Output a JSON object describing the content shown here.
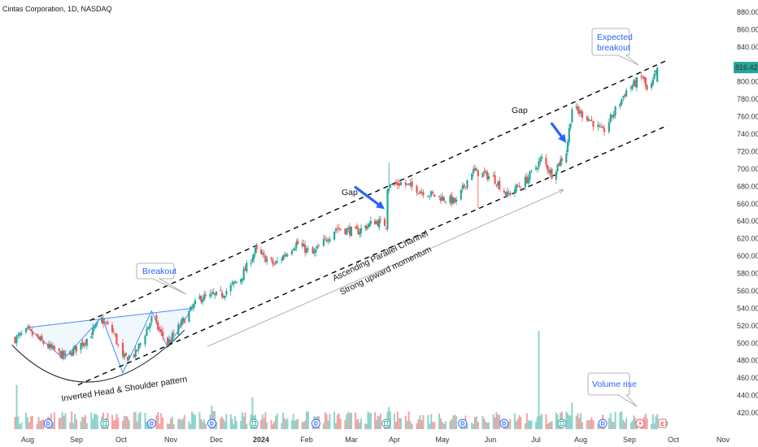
{
  "header": {
    "title": "Cintas Corporation, 1D, NASDAQ"
  },
  "chart_data": {
    "type": "candlestick",
    "symbol": "Cintas Corporation",
    "interval": "1D",
    "exchange": "NASDAQ",
    "ylim": [
      400,
      890
    ],
    "y_ticks": [
      420,
      440,
      460,
      480,
      500,
      520,
      540,
      560,
      580,
      600,
      620,
      640,
      660,
      680,
      700,
      720,
      740,
      760,
      780,
      800,
      820,
      840,
      860,
      880
    ],
    "x_ticks": [
      "Aug",
      "Sep",
      "Oct",
      "Nov",
      "Dec",
      "2024",
      "Feb",
      "Mar",
      "Apr",
      "May",
      "Jun",
      "Jul",
      "Aug",
      "Sep",
      "Oct",
      "Nov"
    ],
    "last_price": "816.42",
    "colors": {
      "up": "#26a69a",
      "down": "#ef5350",
      "up_volume": "#8fd3cb",
      "down_volume": "#f4a3a1",
      "channel": "#000000",
      "pattern": "#4c8bf5",
      "arrow": "#2962ff",
      "price_tag": "#26a69a"
    },
    "price_path": [
      {
        "date": "2023-07-24",
        "price": 505
      },
      {
        "date": "2023-08-01",
        "price": 514
      },
      {
        "date": "2023-08-14",
        "price": 496
      },
      {
        "date": "2023-08-25",
        "price": 484
      },
      {
        "date": "2023-09-08",
        "price": 505
      },
      {
        "date": "2023-09-18",
        "price": 527
      },
      {
        "date": "2023-09-26",
        "price": 512
      },
      {
        "date": "2023-10-02",
        "price": 482
      },
      {
        "date": "2023-10-10",
        "price": 488
      },
      {
        "date": "2023-10-20",
        "price": 528
      },
      {
        "date": "2023-10-30",
        "price": 500
      },
      {
        "date": "2023-11-10",
        "price": 528
      },
      {
        "date": "2023-11-20",
        "price": 552
      },
      {
        "date": "2023-12-05",
        "price": 556
      },
      {
        "date": "2023-12-18",
        "price": 575
      },
      {
        "date": "2023-12-28",
        "price": 606
      },
      {
        "date": "2024-01-10",
        "price": 590
      },
      {
        "date": "2024-01-25",
        "price": 615
      },
      {
        "date": "2024-02-05",
        "price": 602
      },
      {
        "date": "2024-02-20",
        "price": 632
      },
      {
        "date": "2024-03-05",
        "price": 628
      },
      {
        "date": "2024-03-18",
        "price": 640
      },
      {
        "date": "2024-03-26",
        "price": 636
      },
      {
        "date": "2024-03-28",
        "price": 680
      },
      {
        "date": "2024-04-05",
        "price": 684
      },
      {
        "date": "2024-04-25",
        "price": 670
      },
      {
        "date": "2024-05-10",
        "price": 662
      },
      {
        "date": "2024-05-20",
        "price": 698
      },
      {
        "date": "2024-06-03",
        "price": 690
      },
      {
        "date": "2024-06-12",
        "price": 670
      },
      {
        "date": "2024-06-25",
        "price": 688
      },
      {
        "date": "2024-07-05",
        "price": 712
      },
      {
        "date": "2024-07-12",
        "price": 694
      },
      {
        "date": "2024-07-22",
        "price": 720
      },
      {
        "date": "2024-07-26",
        "price": 770
      },
      {
        "date": "2024-08-05",
        "price": 760
      },
      {
        "date": "2024-08-15",
        "price": 742
      },
      {
        "date": "2024-08-30",
        "price": 790
      },
      {
        "date": "2024-09-10",
        "price": 806
      },
      {
        "date": "2024-09-14",
        "price": 784
      },
      {
        "date": "2024-09-20",
        "price": 816
      }
    ],
    "volume_spikes": [
      {
        "date": "2023-07-25",
        "volume": 3.2
      },
      {
        "date": "2023-11-28",
        "volume": 1.7
      },
      {
        "date": "2023-12-26",
        "volume": 2.3
      },
      {
        "date": "2024-03-28",
        "volume": 1.6
      },
      {
        "date": "2024-07-03",
        "volume": 7.1
      },
      {
        "date": "2024-07-26",
        "volume": 1.9
      },
      {
        "date": "2024-09-20",
        "volume": 1.1
      }
    ],
    "events": [
      {
        "date": "2023-08-14",
        "type": "D"
      },
      {
        "date": "2023-09-20",
        "type": "E"
      },
      {
        "date": "2023-10-20",
        "type": "D"
      },
      {
        "date": "2023-11-28",
        "type": "D"
      },
      {
        "date": "2023-12-27",
        "type": "E"
      },
      {
        "date": "2024-02-07",
        "type": "D"
      },
      {
        "date": "2024-03-26",
        "type": "E"
      },
      {
        "date": "2024-05-14",
        "type": "D"
      },
      {
        "date": "2024-06-10",
        "type": "D"
      },
      {
        "date": "2024-07-19",
        "type": "E"
      },
      {
        "date": "2024-08-15",
        "type": "D"
      },
      {
        "date": "2024-09-24",
        "type": "E"
      }
    ],
    "channel": {
      "upper": [
        {
          "date": "2023-09-18",
          "price": 530
        },
        {
          "date": "2024-09-27",
          "price": 825
        }
      ],
      "lower": [
        {
          "date": "2023-10-06",
          "price": 458
        },
        {
          "date": "2024-09-27",
          "price": 750
        }
      ]
    },
    "pattern_lines": {
      "neckline": [
        {
          "date": "2023-08-01",
          "price": 518
        },
        {
          "date": "2023-11-15",
          "price": 540
        }
      ],
      "zigzag": [
        {
          "date": "2023-08-01",
          "price": 518
        },
        {
          "date": "2023-08-24",
          "price": 482
        },
        {
          "date": "2023-09-18",
          "price": 530
        },
        {
          "date": "2023-10-02",
          "price": 466
        },
        {
          "date": "2023-10-20",
          "price": 537
        },
        {
          "date": "2023-10-30",
          "price": 495
        },
        {
          "date": "2023-11-15",
          "price": 540
        }
      ],
      "arc": [
        {
          "date": "2023-07-22",
          "price": 498
        },
        {
          "date": "2023-09-10",
          "price": 459
        },
        {
          "date": "2023-11-10",
          "price": 515
        }
      ]
    },
    "momentum_arrow": [
      {
        "date": "2023-11-25",
        "price": 496
      },
      {
        "date": "2024-07-20",
        "price": 676
      }
    ],
    "gap_arrows": [
      {
        "from": {
          "date": "2024-03-04",
          "price": 679
        },
        "to": {
          "date": "2024-03-25",
          "price": 654
        }
      },
      {
        "from": {
          "date": "2024-07-12",
          "price": 752
        },
        "to": {
          "date": "2024-07-22",
          "price": 730
        }
      }
    ],
    "annotations": {
      "pattern": "Inverted Head & Shoulder pattern",
      "channel": "Ascending Parallel Channel",
      "momentum": "Strong upward momentum",
      "gap": "Gap",
      "breakout": "Breakout",
      "expected_breakout": [
        "Expected",
        "breakout"
      ],
      "volume_rise": "Volume rise"
    }
  }
}
